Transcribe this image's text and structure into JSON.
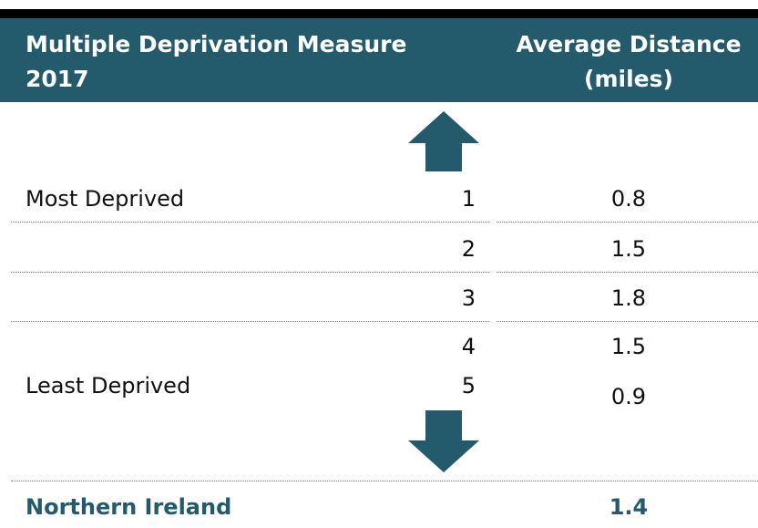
{
  "header": {
    "columns": [
      "Multiple Deprivation Measure 2017",
      "Average Distance (miles)"
    ]
  },
  "table": {
    "rows": [
      {
        "label": "Most Deprived",
        "rank": 1,
        "value": 0.8
      },
      {
        "label": null,
        "rank": 2,
        "value": 1.5
      },
      {
        "label": null,
        "rank": 3,
        "value": 1.8
      },
      {
        "label": null,
        "rank": 4,
        "value": 1.5
      },
      {
        "label": "Least Deprived",
        "rank": 5,
        "value": 0.9
      }
    ]
  },
  "footer": {
    "label": "Northern Ireland",
    "value": 1.4
  }
}
